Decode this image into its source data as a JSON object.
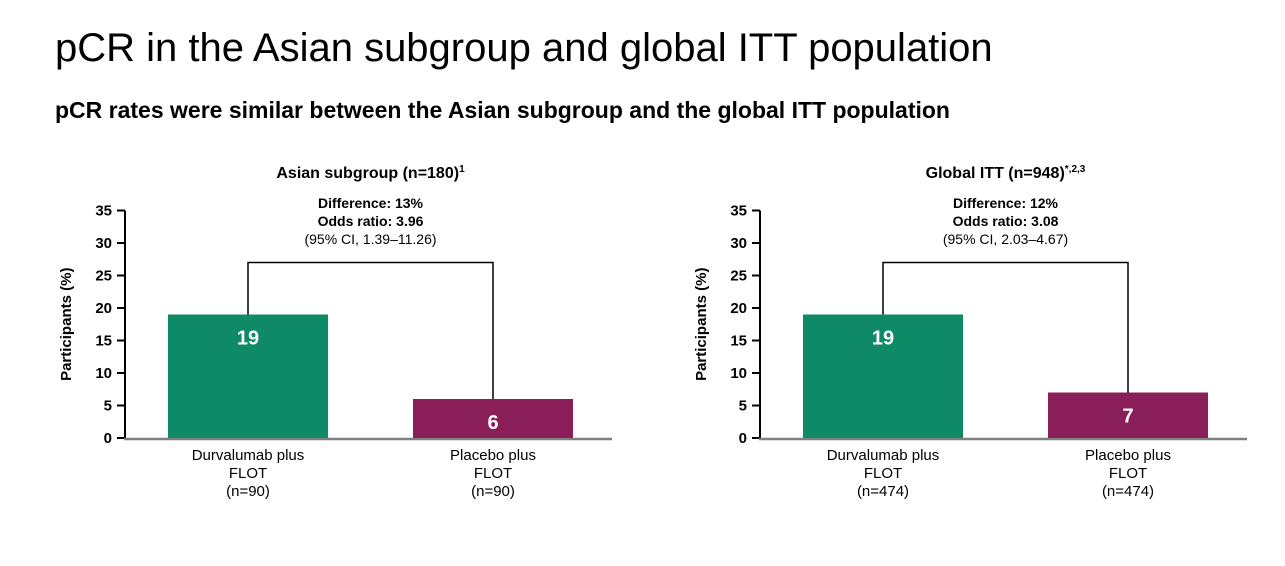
{
  "page": {
    "title": "pCR in the Asian subgroup and global ITT population",
    "subtitle": "pCR rates were similar between the Asian subgroup and the global ITT population"
  },
  "colors": {
    "durvalumab_bar": "#0E8A66",
    "placebo_bar": "#8A1E58",
    "baseline_axis": "#808080",
    "axis": "#000000",
    "bar_value_text": "#FFFFFF",
    "text": "#000000"
  },
  "chart_data": [
    {
      "type": "bar",
      "title": "Asian subgroup (n=180)",
      "title_superscript": "1",
      "annotations": [
        "Difference: 13%",
        "Odds ratio: 3.96",
        "(95% CI, 1.39–11.26)"
      ],
      "ylabel": "Participants (%)",
      "ylim": [
        0,
        35
      ],
      "yticks": [
        0,
        5,
        10,
        15,
        20,
        25,
        30,
        35
      ],
      "grid": false,
      "categories": [
        "Durvalumab plus FLOT (n=90)",
        "Placebo plus FLOT (n=90)"
      ],
      "category_label_lines": [
        [
          "Durvalumab plus",
          "FLOT",
          "(n=90)"
        ],
        [
          "Placebo plus",
          "FLOT",
          "(n=90)"
        ]
      ],
      "values": [
        19,
        6
      ],
      "bar_colors": [
        "#0E8A66",
        "#8A1E58"
      ],
      "comparison_bracket": {
        "top_value": 27,
        "connects": [
          0,
          1
        ]
      }
    },
    {
      "type": "bar",
      "title": "Global ITT (n=948)",
      "title_superscript": "*,2,3",
      "annotations": [
        "Difference: 12%",
        "Odds ratio: 3.08",
        "(95% CI, 2.03–4.67)"
      ],
      "ylabel": "Participants (%)",
      "ylim": [
        0,
        35
      ],
      "yticks": [
        0,
        5,
        10,
        15,
        20,
        25,
        30,
        35
      ],
      "grid": false,
      "categories": [
        "Durvalumab plus FLOT (n=474)",
        "Placebo plus FLOT (n=474)"
      ],
      "category_label_lines": [
        [
          "Durvalumab plus",
          "FLOT",
          "(n=474)"
        ],
        [
          "Placebo plus",
          "FLOT",
          "(n=474)"
        ]
      ],
      "values": [
        19,
        7
      ],
      "bar_colors": [
        "#0E8A66",
        "#8A1E58"
      ],
      "comparison_bracket": {
        "top_value": 27,
        "connects": [
          0,
          1
        ]
      }
    }
  ]
}
